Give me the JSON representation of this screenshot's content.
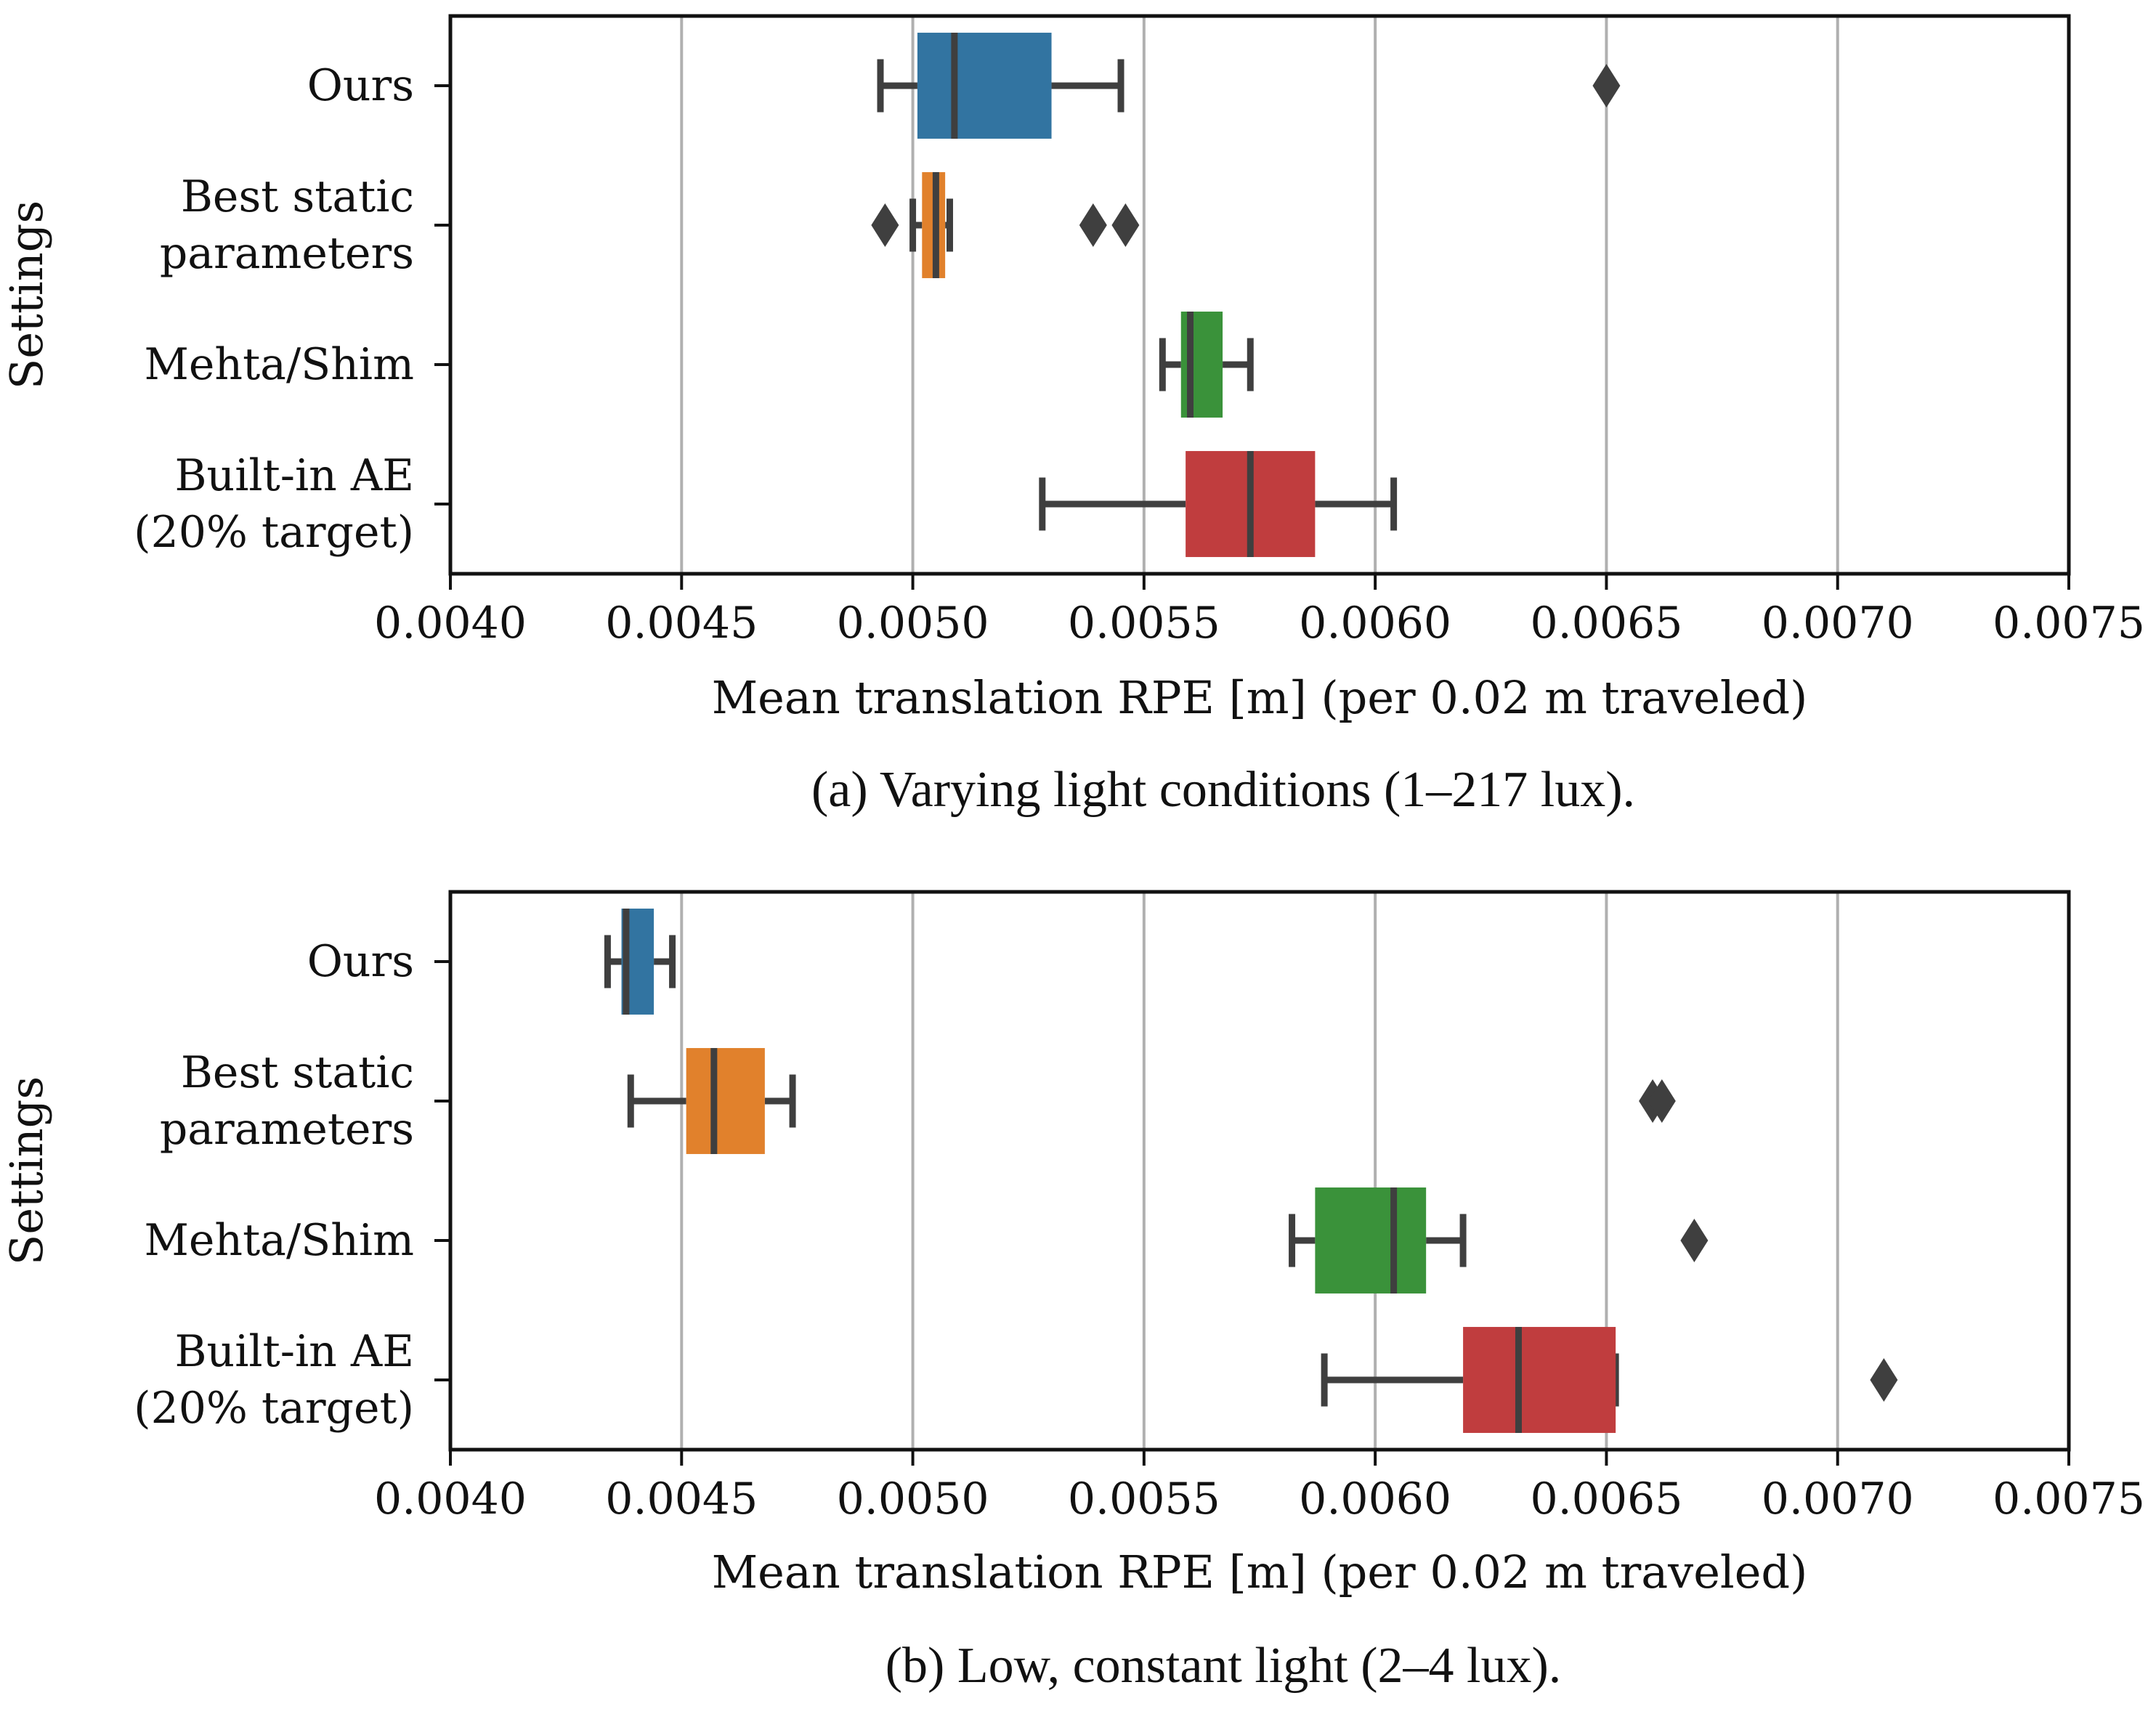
{
  "chart_data": [
    {
      "type": "boxplot",
      "orientation": "horizontal",
      "caption": "(a) Varying light conditions (1–217 lux).",
      "xlabel": "Mean translation RPE [m] (per 0.02 m traveled)",
      "ylabel": "Settings",
      "xlim": [
        0.004,
        0.0075
      ],
      "xticks": [
        "0.0040",
        "0.0045",
        "0.0050",
        "0.0055",
        "0.0060",
        "0.0065",
        "0.0070",
        "0.0075"
      ],
      "grid": "vertical",
      "categories": [
        {
          "lines": [
            "Ours"
          ],
          "color": "#3274a1",
          "whisker_low": 0.00493,
          "q1": 0.00501,
          "median": 0.00509,
          "q3": 0.0053,
          "whisker_high": 0.00545,
          "outliers": [
            0.0065
          ]
        },
        {
          "lines": [
            "Best static",
            "parameters"
          ],
          "color": "#e1812c",
          "whisker_low": 0.005,
          "q1": 0.00502,
          "median": 0.00505,
          "q3": 0.00507,
          "whisker_high": 0.00508,
          "outliers": [
            0.00494,
            0.00539,
            0.00546
          ]
        },
        {
          "lines": [
            "Mehta/Shim"
          ],
          "color": "#3a923a",
          "whisker_low": 0.00554,
          "q1": 0.00558,
          "median": 0.0056,
          "q3": 0.00567,
          "whisker_high": 0.00573,
          "outliers": []
        },
        {
          "lines": [
            "Built-in AE",
            "(20% target)"
          ],
          "color": "#c03d3e",
          "whisker_low": 0.00528,
          "q1": 0.00559,
          "median": 0.00573,
          "q3": 0.00587,
          "whisker_high": 0.00604,
          "outliers": []
        }
      ]
    },
    {
      "type": "boxplot",
      "orientation": "horizontal",
      "caption": "(b) Low, constant light (2–4 lux).",
      "xlabel": "Mean translation RPE [m] (per 0.02 m traveled)",
      "ylabel": "Settings",
      "xlim": [
        0.004,
        0.0075
      ],
      "xticks": [
        "0.0040",
        "0.0045",
        "0.0050",
        "0.0055",
        "0.0060",
        "0.0065",
        "0.0070",
        "0.0075"
      ],
      "grid": "vertical",
      "categories": [
        {
          "lines": [
            "Ours"
          ],
          "color": "#3274a1",
          "whisker_low": 0.00434,
          "q1": 0.00437,
          "median": 0.00438,
          "q3": 0.00444,
          "whisker_high": 0.00448,
          "outliers": []
        },
        {
          "lines": [
            "Best static",
            "parameters"
          ],
          "color": "#e1812c",
          "whisker_low": 0.00439,
          "q1": 0.00451,
          "median": 0.00457,
          "q3": 0.00468,
          "whisker_high": 0.00474,
          "outliers": [
            0.0066,
            0.00662
          ]
        },
        {
          "lines": [
            "Mehta/Shim"
          ],
          "color": "#3a923a",
          "whisker_low": 0.00582,
          "q1": 0.00587,
          "median": 0.00604,
          "q3": 0.00611,
          "whisker_high": 0.00619,
          "outliers": [
            0.00669
          ]
        },
        {
          "lines": [
            "Built-in AE",
            "(20% target)"
          ],
          "color": "#c03d3e",
          "whisker_low": 0.00589,
          "q1": 0.00619,
          "median": 0.00631,
          "q3": 0.00652,
          "whisker_high": 0.00652,
          "outliers": [
            0.0071
          ]
        }
      ]
    }
  ]
}
